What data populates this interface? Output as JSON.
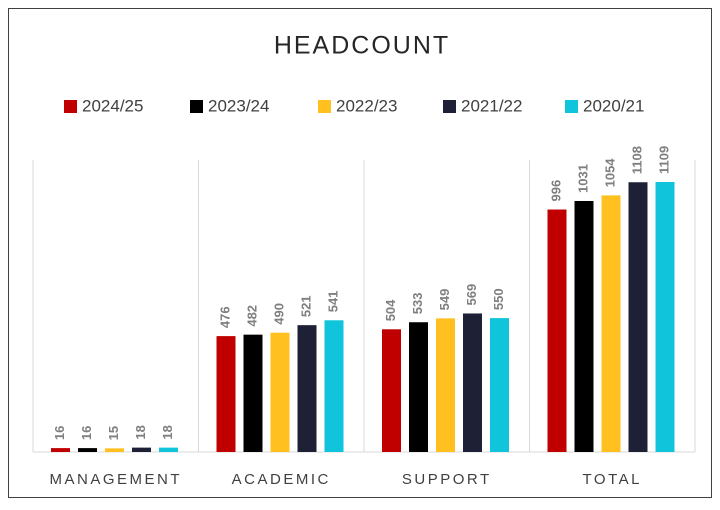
{
  "chart_data": {
    "type": "bar",
    "title": "HEADCOUNT",
    "categories": [
      "MANAGEMENT",
      "ACADEMIC",
      "SUPPORT",
      "TOTAL"
    ],
    "series": [
      {
        "name": "2024/25",
        "color": "#c00000",
        "values": [
          16,
          476,
          504,
          996
        ]
      },
      {
        "name": "2023/24",
        "color": "#000000",
        "values": [
          16,
          482,
          533,
          1031
        ]
      },
      {
        "name": "2022/23",
        "color": "#ffc020",
        "values": [
          15,
          490,
          549,
          1054
        ]
      },
      {
        "name": "2021/22",
        "color": "#1e2136",
        "values": [
          18,
          521,
          569,
          1108
        ]
      },
      {
        "name": "2020/21",
        "color": "#10c4dc",
        "values": [
          18,
          541,
          550,
          1109
        ]
      }
    ]
  }
}
